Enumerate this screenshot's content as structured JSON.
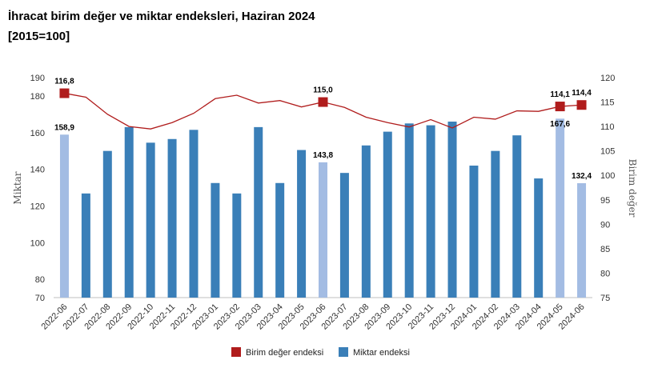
{
  "title": "İhracat birim değer ve miktar endeksleri, Haziran 2024",
  "subtitle": "[2015=100]",
  "chart_data": {
    "type": "bar+line",
    "categories": [
      "2022-06",
      "2022-07",
      "2022-08",
      "2022-09",
      "2022-10",
      "2022-11",
      "2022-12",
      "2023-01",
      "2023-02",
      "2023-03",
      "2023-04",
      "2023-05",
      "2023-06",
      "2023-07",
      "2023-08",
      "2023-09",
      "2023-10",
      "2023-11",
      "2023-12",
      "2024-01",
      "2024-02",
      "2024-03",
      "2024-04",
      "2024-05",
      "2024-06"
    ],
    "left_axis": {
      "label": "Miktar",
      "min": 70,
      "max": 190,
      "ticks": [
        70,
        80,
        100,
        120,
        140,
        160,
        180,
        190
      ]
    },
    "right_axis": {
      "label": "Birim değer",
      "min": 75,
      "max": 120,
      "ticks": [
        75,
        80,
        85,
        90,
        95,
        100,
        105,
        110,
        115,
        120
      ]
    },
    "series": [
      {
        "name": "Miktar endeksi",
        "type": "bar",
        "axis": "left",
        "color": "#3a7fb8",
        "highlight_color": "#a3bce3",
        "highlight_indices": [
          0,
          12,
          23,
          24
        ],
        "values": [
          158.9,
          126.8,
          150.0,
          163.0,
          154.5,
          156.5,
          161.5,
          132.5,
          126.8,
          163.0,
          132.5,
          150.5,
          143.8,
          138.0,
          153.0,
          160.5,
          165.0,
          164.0,
          166.0,
          142.0,
          150.0,
          158.5,
          135.0,
          167.6,
          132.4
        ]
      },
      {
        "name": "Birim değer endeksi",
        "type": "line",
        "axis": "right",
        "color": "#b01c1c",
        "marker_indices": [
          0,
          12,
          23,
          24
        ],
        "values": [
          116.8,
          116.0,
          112.5,
          110.0,
          109.5,
          110.8,
          112.7,
          115.7,
          116.4,
          114.8,
          115.3,
          114.0,
          115.0,
          113.9,
          111.9,
          110.8,
          109.9,
          111.4,
          109.7,
          111.9,
          111.5,
          113.2,
          113.1,
          114.1,
          114.4
        ]
      }
    ],
    "data_labels": [
      {
        "series": "Miktar endeksi",
        "index": 0,
        "text": "158,9"
      },
      {
        "series": "Miktar endeksi",
        "index": 12,
        "text": "143,8"
      },
      {
        "series": "Miktar endeksi",
        "index": 23,
        "text": "167,6"
      },
      {
        "series": "Miktar endeksi",
        "index": 24,
        "text": "132,4"
      },
      {
        "series": "Birim değer endeksi",
        "index": 0,
        "text": "116,8"
      },
      {
        "series": "Birim değer endeksi",
        "index": 12,
        "text": "115,0"
      },
      {
        "series": "Birim değer endeksi",
        "index": 23,
        "text": "114,1"
      },
      {
        "series": "Birim değer endeksi",
        "index": 24,
        "text": "114,4"
      }
    ],
    "legend": {
      "position": "bottom-center",
      "items": [
        {
          "text": "Birim değer endeksi",
          "color": "#b01c1c"
        },
        {
          "text": "Miktar endeksi",
          "color": "#3a7fb8"
        }
      ]
    }
  }
}
